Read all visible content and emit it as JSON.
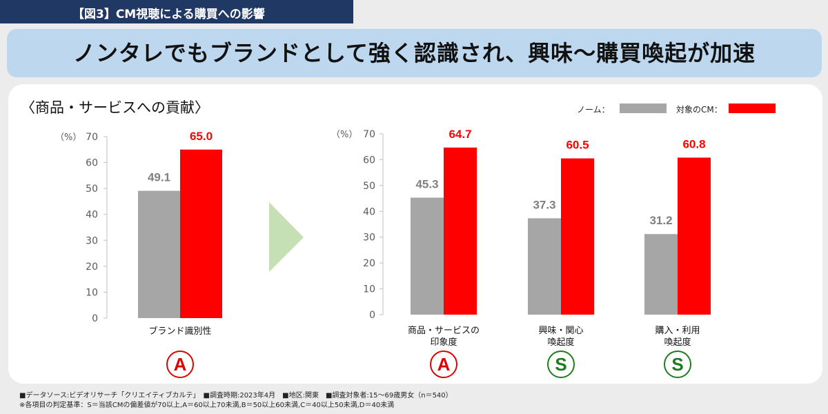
{
  "figure_label": "【図3】CM視聴による購買への影響",
  "headline": "ノンタレでもブランドとして強く認識され、興味〜購買喚起が加速",
  "section_title": "〈商品・サービスへの貢献〉",
  "legend": {
    "norm_label": "ノーム：",
    "target_label": "対象のCM：",
    "norm_color": "#a6a6a6",
    "target_color": "#ff0000"
  },
  "chart_data": [
    {
      "type": "bar",
      "ylabel": "（%）",
      "ylim": [
        0,
        70
      ],
      "yticks": [
        "0",
        "10",
        "20",
        "30",
        "40",
        "50",
        "60",
        "70"
      ],
      "categories": [
        [
          "ブランド識別性"
        ]
      ],
      "series": [
        {
          "name": "ノーム",
          "values": [
            49.1
          ],
          "labels": [
            "49.1"
          ]
        },
        {
          "name": "対象のCM",
          "values": [
            65.0
          ],
          "labels": [
            "65.0"
          ]
        }
      ],
      "grades": [
        "A"
      ]
    },
    {
      "type": "bar",
      "ylabel": "（%）",
      "ylim": [
        0,
        70
      ],
      "yticks": [
        "0",
        "10",
        "20",
        "30",
        "40",
        "50",
        "60",
        "70"
      ],
      "categories": [
        [
          "商品・サービスの",
          "印象度"
        ],
        [
          "興味・関心",
          "喚起度"
        ],
        [
          "購入・利用",
          "喚起度"
        ]
      ],
      "series": [
        {
          "name": "ノーム",
          "values": [
            45.3,
            37.3,
            31.2
          ],
          "labels": [
            "45.3",
            "37.3",
            "31.2"
          ]
        },
        {
          "name": "対象のCM",
          "values": [
            64.7,
            60.5,
            60.8
          ],
          "labels": [
            "64.7",
            "60.5",
            "60.8"
          ]
        }
      ],
      "grades": [
        "A",
        "S",
        "S"
      ]
    }
  ],
  "grade_colors": {
    "A": "#e00000",
    "S": "#1e7b1e"
  },
  "footnotes": [
    "■データソース:ビデオリサーチ「クリエイティブカルテ」　■調査時期:2023年4月　■地区:関東　■調査対象者:15〜69歳男女（n＝540）",
    "※各項目の判定基準：S＝当該CMの偏差値が70以上,A＝60以上70未満,B＝50以上60未満,C＝40以上50未満,D＝40未満"
  ]
}
